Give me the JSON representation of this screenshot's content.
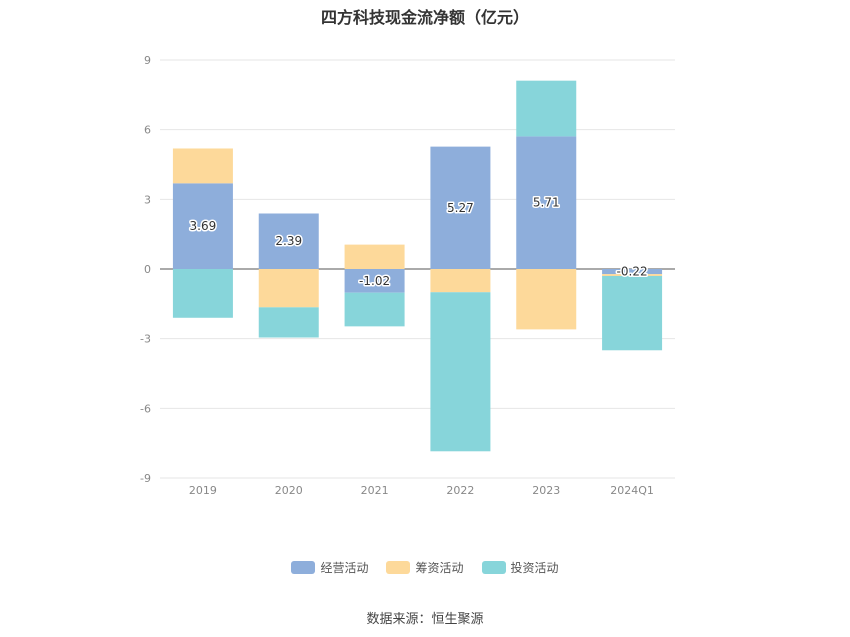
{
  "chart_data": {
    "type": "bar",
    "stacked": true,
    "title": "四方科技现金流净额（亿元）",
    "xlabel": "",
    "ylabel": "",
    "categories": [
      "2019",
      "2020",
      "2021",
      "2022",
      "2023",
      "2024Q1"
    ],
    "ylim": [
      -9,
      9
    ],
    "yticks": [
      9,
      6,
      3,
      0,
      -3,
      -6,
      -9
    ],
    "grid": true,
    "legend_position": "bottom",
    "series": [
      {
        "name": "经营活动",
        "color": "#8eaedb",
        "values": [
          3.69,
          2.39,
          -1.02,
          5.27,
          5.71,
          -0.22
        ],
        "labels": [
          "3.69",
          "2.39",
          "-1.02",
          "5.27",
          "5.71",
          "-0.22"
        ]
      },
      {
        "name": "筹资活动",
        "color": "#fdd99a",
        "values": [
          1.5,
          -1.65,
          1.05,
          -1.0,
          -2.6,
          -0.08
        ]
      },
      {
        "name": "投资活动",
        "color": "#87d5da",
        "values": [
          -2.1,
          -1.3,
          -1.45,
          -6.85,
          2.4,
          -3.2
        ]
      }
    ]
  },
  "source": "数据来源：恒生聚源"
}
